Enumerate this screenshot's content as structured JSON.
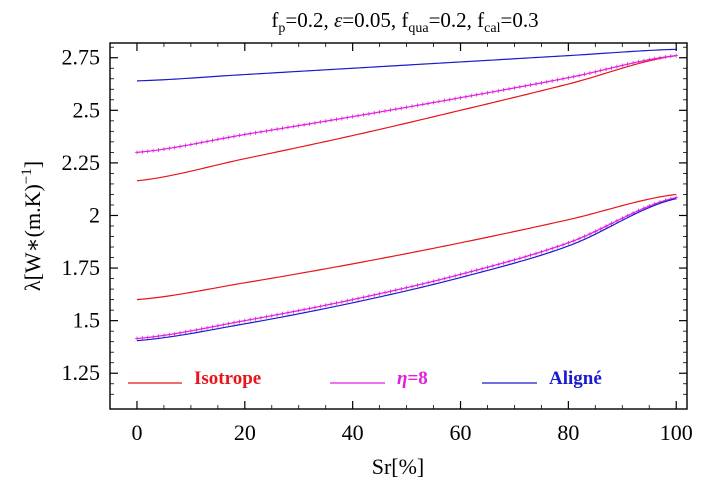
{
  "chart_data": {
    "type": "line",
    "title": "f_p=0.2, ε=0.05, f_qua=0.2, f_cal=0.3",
    "xlabel": "Sr[%]",
    "ylabel": "λ[W∗(m.K)⁻¹]",
    "xlim": [
      -5,
      102
    ],
    "ylim": [
      1.08,
      2.82
    ],
    "x_ticks": [
      0,
      20,
      40,
      60,
      80,
      100
    ],
    "x_tick_labels": [
      "0",
      "20",
      "40",
      "60",
      "80",
      "100"
    ],
    "y_ticks": [
      1.25,
      1.5,
      1.75,
      2,
      2.25,
      2.5,
      2.75
    ],
    "y_tick_labels": [
      "1.25",
      "1.5",
      "1.75",
      "2",
      "2.25",
      "2.5",
      "2.75"
    ],
    "grid": false,
    "legend": {
      "placement": "bottom",
      "entries": [
        {
          "label": "Isotrope",
          "color": "#e8141c"
        },
        {
          "label": "η=8",
          "color": "#e020e0"
        },
        {
          "label": "Aligné",
          "color": "#1a1ad0"
        }
      ]
    },
    "series": [
      {
        "legend": "Isotrope",
        "branch": "upper",
        "color": "#e8141c",
        "x": [
          0,
          20,
          40,
          60,
          80,
          100
        ],
        "y": [
          2.165,
          2.27,
          2.38,
          2.5,
          2.625,
          2.76
        ]
      },
      {
        "legend": "η=8",
        "branch": "upper",
        "color": "#e020e0",
        "marker": "plus",
        "x": [
          0,
          20,
          40,
          60,
          80,
          100
        ],
        "y": [
          2.3,
          2.385,
          2.47,
          2.56,
          2.655,
          2.76
        ]
      },
      {
        "legend": "Aligné",
        "branch": "upper",
        "color": "#1a1ad0",
        "x": [
          0,
          20,
          40,
          60,
          80,
          100
        ],
        "y": [
          2.64,
          2.67,
          2.7,
          2.73,
          2.76,
          2.79
        ]
      },
      {
        "legend": "Isotrope",
        "branch": "lower",
        "color": "#e8141c",
        "x": [
          0,
          20,
          40,
          60,
          80,
          100
        ],
        "y": [
          1.6,
          1.68,
          1.77,
          1.87,
          1.98,
          2.1
        ]
      },
      {
        "legend": "η=8",
        "branch": "lower",
        "color": "#e020e0",
        "marker": "plus",
        "x": [
          0,
          20,
          40,
          60,
          80,
          100
        ],
        "y": [
          1.415,
          1.5,
          1.6,
          1.72,
          1.87,
          2.085
        ]
      },
      {
        "legend": "Aligné",
        "branch": "lower",
        "color": "#1a1ad0",
        "x": [
          0,
          20,
          40,
          60,
          80,
          100
        ],
        "y": [
          1.405,
          1.485,
          1.585,
          1.705,
          1.855,
          2.08
        ]
      }
    ]
  }
}
